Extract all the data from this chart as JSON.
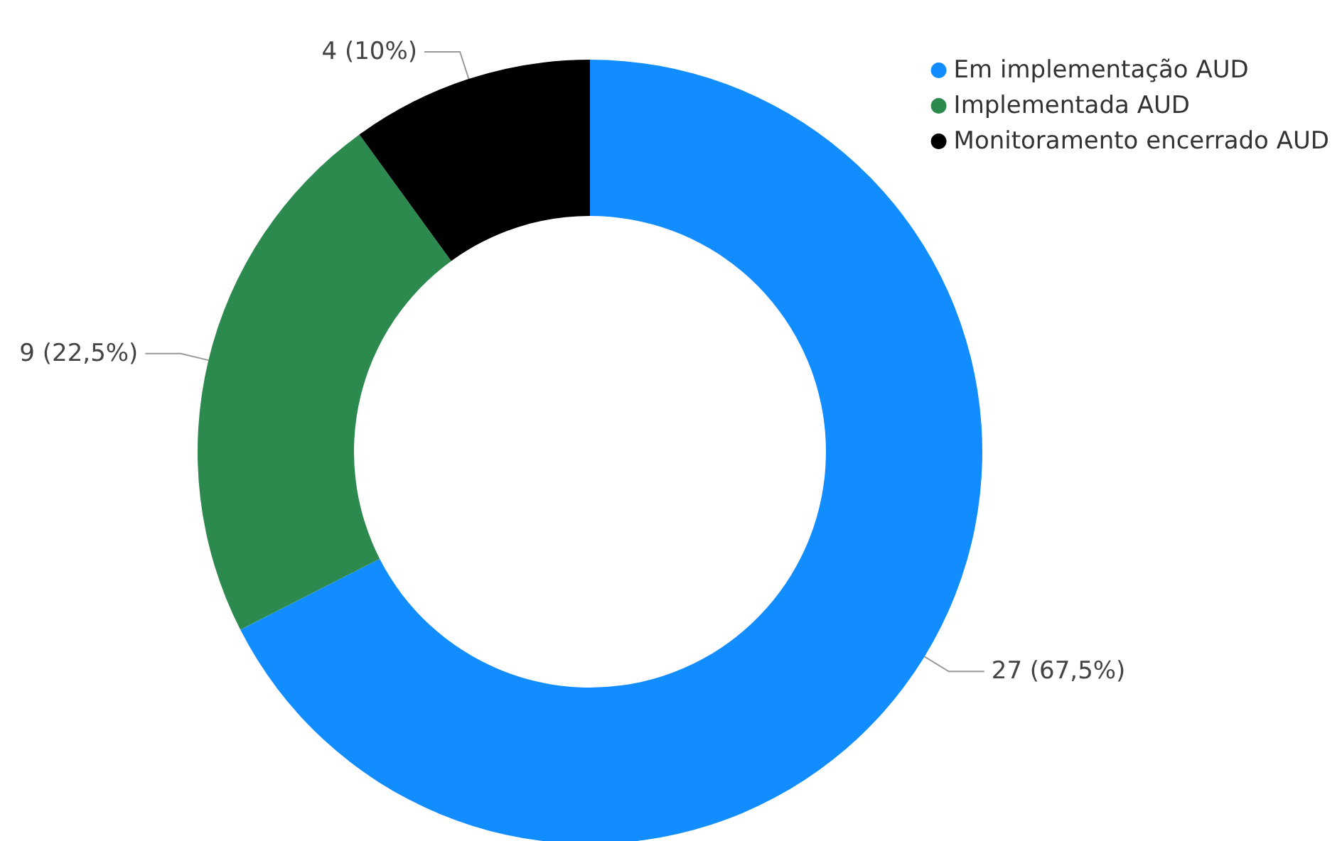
{
  "chart_data": {
    "type": "donut",
    "categories": [
      "Em implementação AUD",
      "Implementada AUD",
      "Monitoramento encerrado AUD"
    ],
    "values": [
      27,
      9,
      4
    ],
    "colors": [
      "#118dff",
      "#2d8a4e",
      "#000000"
    ],
    "value_labels": [
      "27 (67,5%)",
      "9 (22,5%)",
      "4 (10%)"
    ],
    "legend": "top right"
  }
}
